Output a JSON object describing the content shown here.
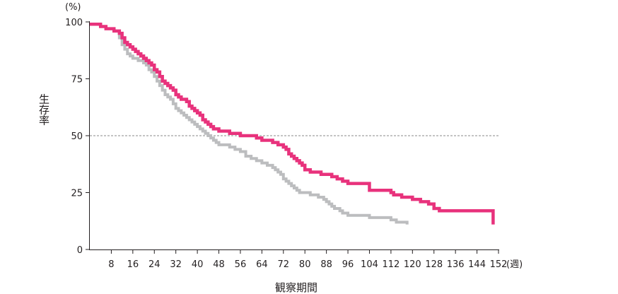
{
  "chart_data": {
    "type": "line",
    "title": "",
    "xlabel": "観察期間",
    "ylabel": "生存率",
    "x_unit": "(週)",
    "y_unit": "(%)",
    "xlim": [
      0,
      152
    ],
    "ylim": [
      0,
      100
    ],
    "x_ticks": [
      8,
      16,
      24,
      32,
      40,
      48,
      56,
      64,
      72,
      80,
      88,
      96,
      104,
      112,
      120,
      128,
      136,
      144,
      152
    ],
    "y_ticks": [
      0,
      25,
      50,
      75,
      100
    ],
    "reference_line_y": 50,
    "grid": false,
    "step": true,
    "series": [
      {
        "color": "#e8327c",
        "x": [
          0,
          4,
          6,
          9,
          11,
          12,
          13,
          14,
          15,
          16,
          17,
          18,
          19,
          20,
          21,
          22,
          23,
          24,
          25,
          26,
          27,
          28,
          29,
          30,
          31,
          32,
          33,
          34,
          35,
          36,
          37,
          38,
          39,
          40,
          41,
          42,
          43,
          44,
          45,
          46,
          47,
          48,
          49,
          50,
          52,
          54,
          56,
          58,
          62,
          64,
          66,
          68,
          69,
          70,
          71,
          72,
          73,
          74,
          75,
          76,
          77,
          78,
          79,
          80,
          82,
          86,
          89,
          90,
          92,
          94,
          96,
          102,
          104,
          110,
          112,
          113,
          114,
          116,
          117,
          120,
          123,
          124,
          126,
          128,
          130,
          150
        ],
        "y": [
          99,
          98,
          97,
          96,
          95,
          93,
          91,
          90,
          89,
          88,
          87,
          86,
          85,
          84,
          83,
          82,
          81,
          79,
          78,
          76,
          74,
          73,
          72,
          71,
          70,
          68,
          67,
          66,
          66,
          65,
          63,
          62,
          61,
          60,
          59,
          57,
          56,
          55,
          54,
          53,
          53,
          52,
          52,
          52,
          51,
          51,
          50,
          50,
          49,
          48,
          48,
          47,
          47,
          46,
          46,
          45,
          44,
          42,
          41,
          40,
          39,
          38,
          37,
          35,
          34,
          33,
          33,
          32,
          31,
          30,
          29,
          29,
          26,
          26,
          25,
          24,
          24,
          23,
          23,
          22,
          21,
          21,
          20,
          18,
          17,
          11
        ]
      },
      {
        "color": "#bcbdbf",
        "x": [
          0,
          4,
          6,
          9,
          11,
          12,
          13,
          14,
          15,
          16,
          18,
          20,
          21,
          22,
          23,
          24,
          25,
          26,
          27,
          28,
          29,
          30,
          31,
          32,
          33,
          34,
          35,
          36,
          37,
          38,
          39,
          40,
          41,
          42,
          43,
          44,
          45,
          46,
          47,
          48,
          50,
          52,
          54,
          56,
          58,
          60,
          62,
          64,
          66,
          68,
          69,
          70,
          71,
          72,
          73,
          74,
          75,
          76,
          77,
          78,
          80,
          82,
          85,
          87,
          88,
          89,
          90,
          91,
          93,
          94,
          96,
          98,
          104,
          108,
          112,
          113,
          114,
          116,
          118
        ],
        "y": [
          99,
          98,
          97,
          96,
          93,
          90,
          88,
          86,
          85,
          84,
          83,
          82,
          81,
          79,
          78,
          76,
          74,
          72,
          70,
          68,
          67,
          66,
          64,
          62,
          61,
          60,
          59,
          58,
          57,
          56,
          55,
          54,
          53,
          52,
          51,
          50,
          49,
          48,
          47,
          46,
          46,
          45,
          44,
          43,
          41,
          40,
          39,
          38,
          37,
          36,
          35,
          34,
          33,
          31,
          30,
          29,
          28,
          27,
          26,
          25,
          25,
          24,
          23,
          22,
          21,
          20,
          19,
          18,
          17,
          16,
          15,
          15,
          14,
          14,
          13,
          13,
          12,
          12,
          11
        ]
      }
    ]
  }
}
